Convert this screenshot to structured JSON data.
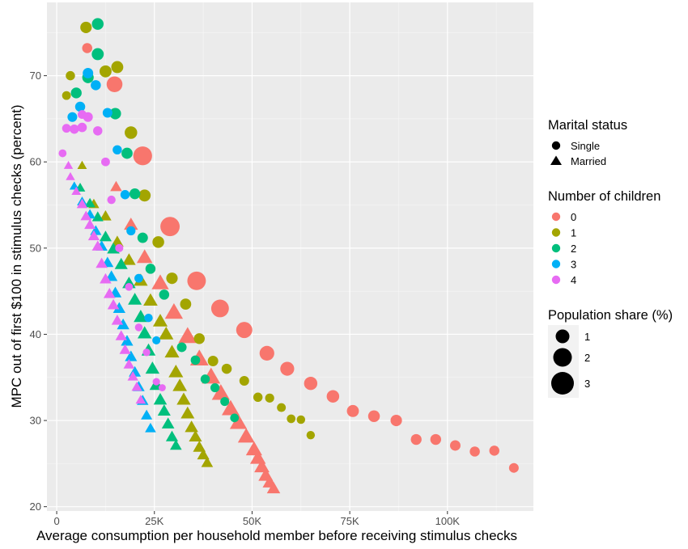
{
  "chart_data": {
    "type": "scatter",
    "xlabel": "Average consumption per household member before receiving stimulus checks",
    "ylabel": "MPC out of first $100 in stimulus checks (percent)",
    "xlim": [
      -2500,
      122000
    ],
    "ylim": [
      19.5,
      78.5
    ],
    "x_ticks": [
      0,
      25000,
      50000,
      75000,
      100000
    ],
    "x_tick_labels": [
      "0",
      "25K",
      "50K",
      "75K",
      "100K"
    ],
    "y_ticks": [
      20,
      30,
      40,
      50,
      60,
      70
    ],
    "y_tick_labels": [
      "20",
      "30",
      "40",
      "50",
      "60",
      "70"
    ],
    "grid": true,
    "legend_position": "right",
    "legend": {
      "marital_title": "Marital status",
      "marital_items": [
        {
          "label": "Single",
          "shape": "circle"
        },
        {
          "label": "Married",
          "shape": "triangle"
        }
      ],
      "children_title": "Number of children",
      "children_items": [
        {
          "label": "0",
          "color": "#F8766D"
        },
        {
          "label": "1",
          "color": "#A3A500"
        },
        {
          "label": "2",
          "color": "#00BF7D"
        },
        {
          "label": "3",
          "color": "#00B0F6"
        },
        {
          "label": "4",
          "color": "#E76BF3"
        }
      ],
      "share_title": "Population share (%)",
      "share_items": [
        {
          "label": "1",
          "value": 1
        },
        {
          "label": "2",
          "value": 2
        },
        {
          "label": "3",
          "value": 3
        }
      ]
    },
    "series": [
      {
        "children": 0,
        "marital": "Single",
        "color": "#F8766D",
        "points": [
          [
            7800,
            73.2,
            0.3
          ],
          [
            14800,
            69.0,
            1.5
          ],
          [
            22000,
            60.7,
            2.5
          ],
          [
            29000,
            52.5,
            2.7
          ],
          [
            35800,
            46.2,
            2.4
          ],
          [
            41800,
            43.0,
            2.1
          ],
          [
            48000,
            40.5,
            1.6
          ],
          [
            53800,
            37.8,
            1.2
          ],
          [
            59000,
            36.0,
            1.0
          ],
          [
            65000,
            34.3,
            0.85
          ],
          [
            70700,
            32.8,
            0.7
          ],
          [
            75800,
            31.1,
            0.6
          ],
          [
            81200,
            30.5,
            0.55
          ],
          [
            86900,
            30.0,
            0.5
          ],
          [
            92000,
            27.8,
            0.4
          ],
          [
            97000,
            27.8,
            0.4
          ],
          [
            102000,
            27.1,
            0.35
          ],
          [
            107000,
            26.4,
            0.3
          ],
          [
            112000,
            26.5,
            0.3
          ],
          [
            117000,
            24.5,
            0.25
          ]
        ]
      },
      {
        "children": 0,
        "marital": "Married",
        "color": "#F8766D",
        "points": [
          [
            15200,
            57.0,
            0.3
          ],
          [
            19000,
            52.6,
            0.6
          ],
          [
            22500,
            48.8,
            0.9
          ],
          [
            26500,
            45.8,
            1.2
          ],
          [
            30000,
            42.4,
            1.4
          ],
          [
            33500,
            39.6,
            1.5
          ],
          [
            36500,
            37.0,
            1.5
          ],
          [
            39500,
            34.9,
            1.5
          ],
          [
            42000,
            33.0,
            1.4
          ],
          [
            44500,
            31.2,
            1.3
          ],
          [
            46500,
            29.6,
            1.2
          ],
          [
            48500,
            28.0,
            1.1
          ],
          [
            50500,
            26.5,
            1.0
          ],
          [
            51500,
            25.5,
            0.9
          ],
          [
            52500,
            24.5,
            0.8
          ],
          [
            53500,
            23.5,
            0.7
          ],
          [
            54500,
            22.7,
            0.6
          ],
          [
            55500,
            22.0,
            0.5
          ]
        ]
      },
      {
        "children": 1,
        "marital": "Single",
        "color": "#A3A500",
        "points": [
          [
            7500,
            75.6,
            0.5
          ],
          [
            3500,
            70.0,
            0.2
          ],
          [
            2500,
            67.7,
            0.15
          ],
          [
            12500,
            70.5,
            0.6
          ],
          [
            15500,
            71.0,
            0.6
          ],
          [
            19000,
            63.4,
            0.7
          ],
          [
            22500,
            56.1,
            0.6
          ],
          [
            26000,
            50.7,
            0.55
          ],
          [
            29500,
            46.5,
            0.5
          ],
          [
            33000,
            43.5,
            0.45
          ],
          [
            36500,
            39.5,
            0.4
          ],
          [
            40000,
            36.9,
            0.35
          ],
          [
            43500,
            36.0,
            0.3
          ],
          [
            48000,
            34.6,
            0.25
          ],
          [
            51500,
            32.7,
            0.2
          ],
          [
            54500,
            32.6,
            0.18
          ],
          [
            57500,
            31.5,
            0.16
          ],
          [
            60000,
            30.2,
            0.14
          ],
          [
            62500,
            30.1,
            0.13
          ],
          [
            65000,
            28.3,
            0.12
          ]
        ]
      },
      {
        "children": 1,
        "marital": "Married",
        "color": "#A3A500",
        "points": [
          [
            6500,
            59.5,
            0.1
          ],
          [
            9500,
            55.0,
            0.2
          ],
          [
            12500,
            53.6,
            0.3
          ],
          [
            15500,
            50.6,
            0.4
          ],
          [
            18500,
            48.5,
            0.5
          ],
          [
            21500,
            46.1,
            0.6
          ],
          [
            24000,
            43.8,
            0.65
          ],
          [
            26500,
            41.4,
            0.7
          ],
          [
            28000,
            39.9,
            0.7
          ],
          [
            29500,
            37.8,
            0.7
          ],
          [
            30500,
            35.5,
            0.7
          ],
          [
            31500,
            33.9,
            0.65
          ],
          [
            32500,
            32.3,
            0.6
          ],
          [
            33500,
            30.7,
            0.55
          ],
          [
            34500,
            29.1,
            0.5
          ],
          [
            35500,
            28.0,
            0.45
          ],
          [
            36500,
            26.8,
            0.4
          ],
          [
            37500,
            25.9,
            0.35
          ],
          [
            38500,
            25.0,
            0.3
          ]
        ]
      },
      {
        "children": 2,
        "marital": "Single",
        "color": "#00BF7D",
        "points": [
          [
            10500,
            76.0,
            0.55
          ],
          [
            10500,
            72.5,
            0.6
          ],
          [
            5000,
            68.0,
            0.4
          ],
          [
            8000,
            69.8,
            0.5
          ],
          [
            15000,
            65.6,
            0.5
          ],
          [
            18000,
            61.0,
            0.45
          ],
          [
            20000,
            56.3,
            0.4
          ],
          [
            22000,
            51.2,
            0.35
          ],
          [
            24000,
            47.6,
            0.3
          ],
          [
            27500,
            44.6,
            0.3
          ],
          [
            32000,
            38.5,
            0.25
          ],
          [
            35500,
            37.0,
            0.22
          ],
          [
            38000,
            34.8,
            0.2
          ],
          [
            40500,
            33.8,
            0.18
          ],
          [
            43000,
            32.2,
            0.16
          ],
          [
            45500,
            30.3,
            0.14
          ]
        ]
      },
      {
        "children": 2,
        "marital": "Married",
        "color": "#00BF7D",
        "points": [
          [
            6000,
            56.9,
            0.15
          ],
          [
            8500,
            55.1,
            0.2
          ],
          [
            10500,
            53.5,
            0.25
          ],
          [
            12500,
            51.2,
            0.35
          ],
          [
            14500,
            49.8,
            0.4
          ],
          [
            16500,
            48.0,
            0.45
          ],
          [
            18500,
            45.8,
            0.5
          ],
          [
            20000,
            43.9,
            0.55
          ],
          [
            21500,
            41.9,
            0.6
          ],
          [
            22500,
            40.0,
            0.6
          ],
          [
            23500,
            38.0,
            0.6
          ],
          [
            24500,
            35.9,
            0.6
          ],
          [
            25500,
            34.0,
            0.55
          ],
          [
            26500,
            32.3,
            0.5
          ],
          [
            27500,
            31.0,
            0.45
          ],
          [
            28500,
            29.5,
            0.4
          ],
          [
            29500,
            28.0,
            0.35
          ],
          [
            30500,
            27.0,
            0.3
          ]
        ]
      },
      {
        "children": 3,
        "marital": "Single",
        "color": "#00B0F6",
        "points": [
          [
            8000,
            70.3,
            0.35
          ],
          [
            6000,
            66.4,
            0.3
          ],
          [
            4000,
            65.2,
            0.25
          ],
          [
            10000,
            68.9,
            0.3
          ],
          [
            13000,
            65.7,
            0.25
          ],
          [
            15500,
            61.4,
            0.2
          ],
          [
            17500,
            56.2,
            0.2
          ],
          [
            19000,
            52.0,
            0.18
          ],
          [
            21000,
            46.5,
            0.15
          ],
          [
            23500,
            41.9,
            0.12
          ],
          [
            25500,
            39.3,
            0.1
          ]
        ]
      },
      {
        "children": 3,
        "marital": "Married",
        "color": "#00B0F6",
        "points": [
          [
            4500,
            57.1,
            0.1
          ],
          [
            6500,
            55.3,
            0.15
          ],
          [
            8500,
            53.8,
            0.2
          ],
          [
            10000,
            51.9,
            0.25
          ],
          [
            11500,
            50.1,
            0.3
          ],
          [
            13000,
            48.2,
            0.32
          ],
          [
            14000,
            46.6,
            0.35
          ],
          [
            15000,
            44.7,
            0.36
          ],
          [
            16000,
            42.9,
            0.37
          ],
          [
            17000,
            41.0,
            0.37
          ],
          [
            18000,
            39.1,
            0.36
          ],
          [
            19000,
            37.3,
            0.35
          ],
          [
            20000,
            35.5,
            0.33
          ],
          [
            21000,
            33.8,
            0.3
          ],
          [
            22000,
            32.2,
            0.28
          ],
          [
            23000,
            30.5,
            0.25
          ],
          [
            24000,
            29.0,
            0.22
          ]
        ]
      },
      {
        "children": 4,
        "marital": "Single",
        "color": "#E76BF3",
        "points": [
          [
            1500,
            61.0,
            0.08
          ],
          [
            2500,
            63.9,
            0.15
          ],
          [
            4500,
            63.8,
            0.2
          ],
          [
            6500,
            64.0,
            0.22
          ],
          [
            8000,
            65.2,
            0.25
          ],
          [
            6500,
            65.5,
            0.15
          ],
          [
            10500,
            63.6,
            0.2
          ],
          [
            12500,
            60.0,
            0.15
          ],
          [
            14000,
            55.6,
            0.12
          ],
          [
            16000,
            50.0,
            0.1
          ],
          [
            18500,
            45.5,
            0.08
          ],
          [
            21000,
            40.8,
            0.07
          ],
          [
            23000,
            37.9,
            0.06
          ],
          [
            25500,
            34.5,
            0.05
          ],
          [
            27000,
            33.8,
            0.04
          ]
        ]
      },
      {
        "children": 4,
        "marital": "Married",
        "color": "#E76BF3",
        "points": [
          [
            3000,
            59.5,
            0.08
          ],
          [
            3500,
            58.2,
            0.08
          ],
          [
            5000,
            56.5,
            0.1
          ],
          [
            6500,
            55.0,
            0.2
          ],
          [
            7500,
            53.6,
            0.22
          ],
          [
            8500,
            52.6,
            0.25
          ],
          [
            9500,
            51.3,
            0.27
          ],
          [
            10500,
            50.1,
            0.28
          ],
          [
            11500,
            48.1,
            0.3
          ],
          [
            12500,
            46.3,
            0.3
          ],
          [
            13500,
            44.6,
            0.3
          ],
          [
            14500,
            43.3,
            0.3
          ],
          [
            15500,
            41.5,
            0.28
          ],
          [
            16500,
            39.7,
            0.27
          ],
          [
            17500,
            38.1,
            0.25
          ],
          [
            18500,
            36.4,
            0.22
          ],
          [
            19500,
            35.0,
            0.2
          ],
          [
            20500,
            33.8,
            0.18
          ],
          [
            21500,
            32.3,
            0.15
          ]
        ]
      }
    ]
  }
}
